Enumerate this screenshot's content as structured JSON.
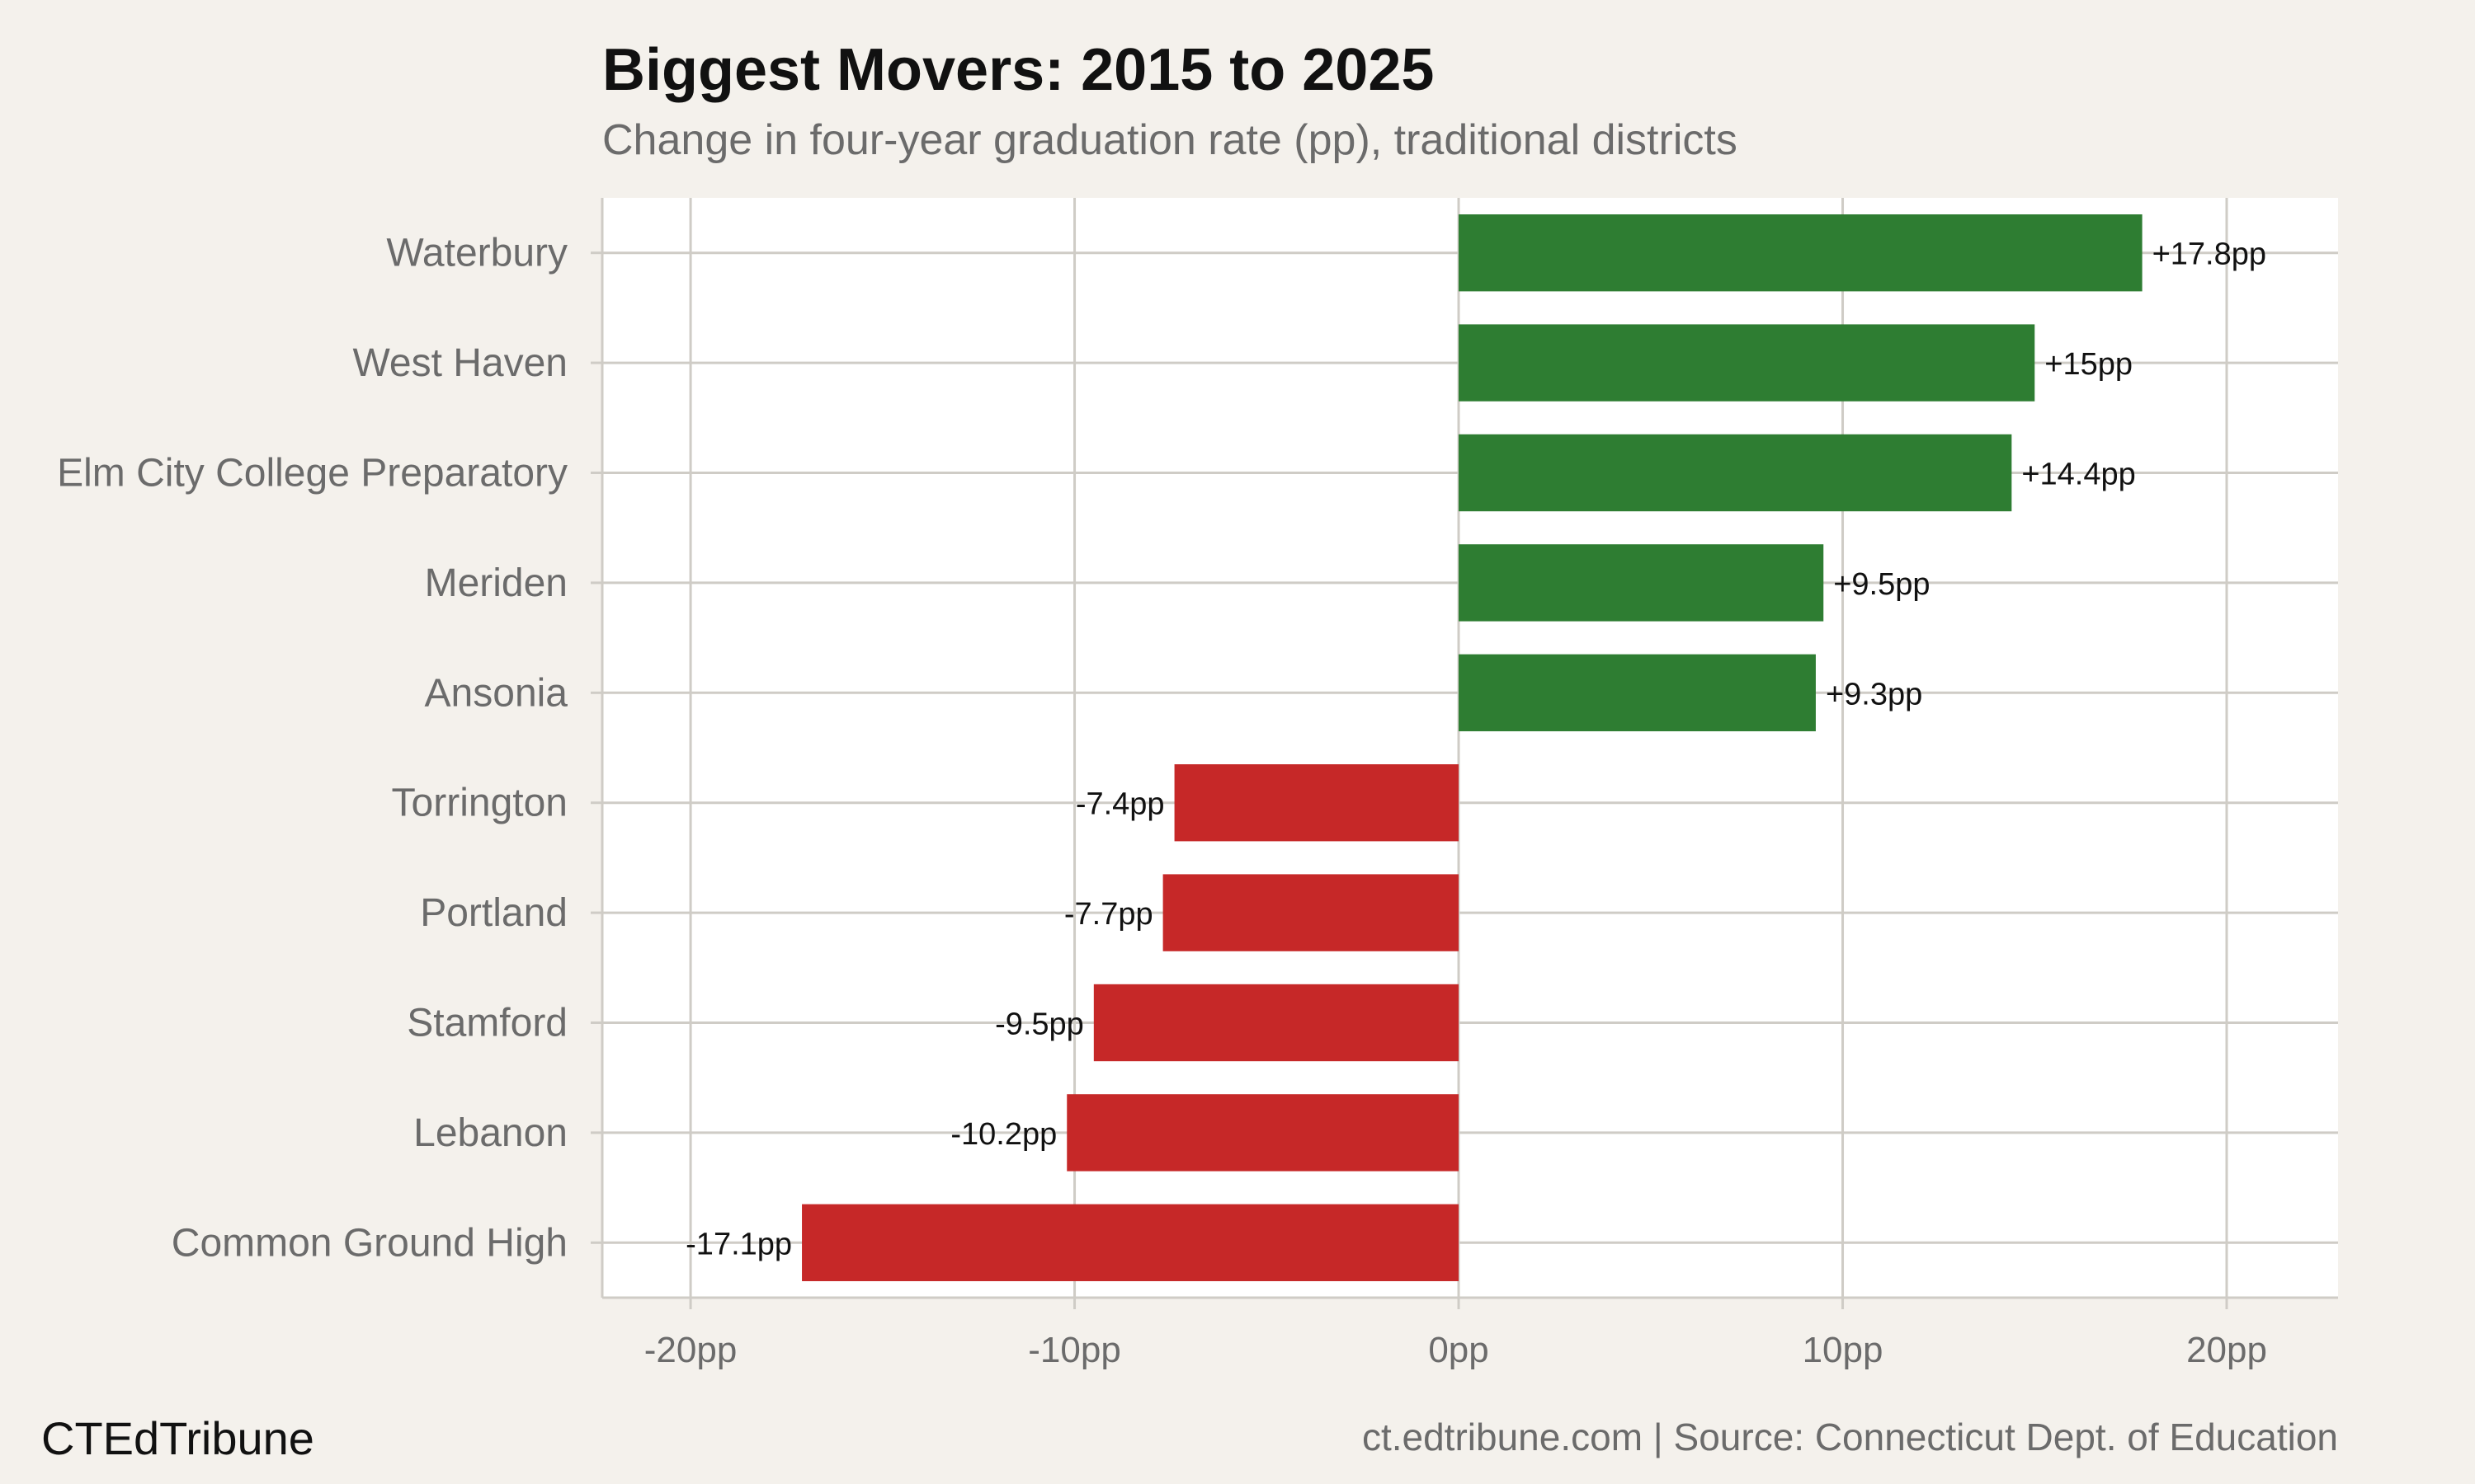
{
  "header": {
    "title": "Biggest Movers: 2015 to 2025",
    "subtitle": "Change in four-year graduation rate (pp), traditional districts"
  },
  "footer": {
    "brand": "CTEdTribune",
    "source": "ct.edtribune.com | Source: Connecticut Dept. of Education"
  },
  "colors": {
    "positive": "#2e7d32",
    "negative": "#c62828",
    "background": "#f4f1ec",
    "panel": "#ffffff",
    "grid": "#cfccc6"
  },
  "chart_data": {
    "type": "bar",
    "orientation": "horizontal",
    "title": "Biggest Movers: 2015 to 2025",
    "subtitle": "Change in four-year graduation rate (pp), traditional districts",
    "categories": [
      "Waterbury",
      "West Haven",
      "Elm City College Preparatory",
      "Meriden",
      "Ansonia",
      "Torrington",
      "Portland",
      "Stamford",
      "Lebanon",
      "Common Ground High"
    ],
    "values": [
      17.8,
      15,
      14.4,
      9.5,
      9.3,
      -7.4,
      -7.7,
      -9.5,
      -10.2,
      -17.1
    ],
    "value_labels": [
      "+17.8pp",
      "+15pp",
      "+14.4pp",
      "+9.5pp",
      "+9.3pp",
      "-7.4pp",
      "-7.7pp",
      "-9.5pp",
      "-10.2pp",
      "-17.1pp"
    ],
    "xlim": [
      -22.3,
      22.9
    ],
    "x_ticks": [
      -20,
      -10,
      0,
      10,
      20
    ],
    "x_tick_labels": [
      "-20pp",
      "-10pp",
      "0pp",
      "10pp",
      "20pp"
    ],
    "xlabel": "",
    "ylabel": "",
    "grid": true,
    "legend": "none"
  }
}
